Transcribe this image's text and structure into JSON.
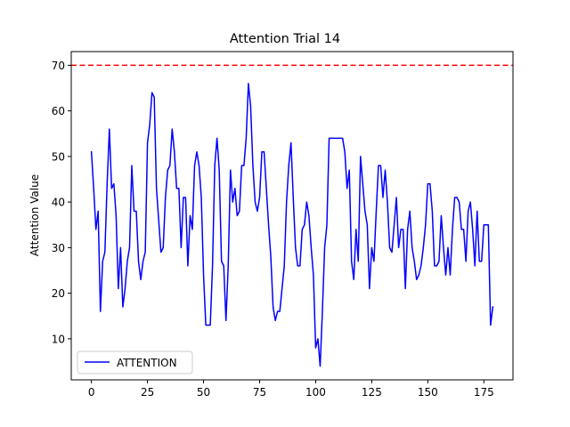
{
  "chart_data": {
    "type": "line",
    "title": "Attention Trial 14",
    "xlabel": "",
    "ylabel": "Attention Value",
    "xlim": [
      -9,
      188
    ],
    "ylim": [
      1,
      73
    ],
    "xticks": [
      0,
      25,
      50,
      75,
      100,
      125,
      150,
      175
    ],
    "yticks": [
      10,
      20,
      30,
      40,
      50,
      60,
      70
    ],
    "grid": false,
    "legend_position": "lower-left",
    "threshold": {
      "value": 70,
      "color": "#ff0000",
      "style": "dashed"
    },
    "series": [
      {
        "name": "ATTENTION",
        "color": "#0000ff",
        "x": [
          0,
          1,
          2,
          3,
          4,
          5,
          6,
          7,
          8,
          9,
          10,
          11,
          12,
          13,
          14,
          15,
          16,
          17,
          18,
          19,
          20,
          21,
          22,
          23,
          24,
          25,
          26,
          27,
          28,
          29,
          30,
          31,
          32,
          33,
          34,
          35,
          36,
          37,
          38,
          39,
          40,
          41,
          42,
          43,
          44,
          45,
          46,
          47,
          48,
          49,
          50,
          51,
          52,
          53,
          54,
          55,
          56,
          57,
          58,
          59,
          60,
          61,
          62,
          63,
          64,
          65,
          66,
          67,
          68,
          69,
          70,
          71,
          72,
          73,
          74,
          75,
          76,
          77,
          78,
          79,
          80,
          81,
          82,
          83,
          84,
          85,
          86,
          87,
          88,
          89,
          90,
          91,
          92,
          93,
          94,
          95,
          96,
          97,
          98,
          99,
          100,
          101,
          102,
          103,
          104,
          105,
          106,
          107,
          108,
          109,
          110,
          111,
          112,
          113,
          114,
          115,
          116,
          117,
          118,
          119,
          120,
          121,
          122,
          123,
          124,
          125,
          126,
          127,
          128,
          129,
          130,
          131,
          132,
          133,
          134,
          135,
          136,
          137,
          138,
          139,
          140,
          141,
          142,
          143,
          144,
          145,
          146,
          147,
          148,
          149,
          150,
          151,
          152,
          153,
          154,
          155,
          156,
          157,
          158,
          159,
          160,
          161,
          162,
          163,
          164,
          165,
          166,
          167,
          168,
          169,
          170,
          171,
          172,
          173,
          174,
          175,
          176,
          177,
          178,
          179
        ],
        "values": [
          51,
          43,
          34,
          38,
          16,
          27,
          29,
          44,
          56,
          43,
          44,
          37,
          21,
          30,
          17,
          21,
          27,
          30,
          48,
          38,
          38,
          27,
          23,
          27,
          29,
          53,
          57,
          64,
          63,
          43,
          36,
          29,
          30,
          41,
          47,
          48,
          56,
          51,
          43,
          43,
          30,
          41,
          41,
          26,
          37,
          34,
          48,
          51,
          48,
          41,
          24,
          13,
          13,
          13,
          26,
          48,
          54,
          47,
          27,
          26,
          14,
          26,
          47,
          40,
          43,
          37,
          38,
          48,
          48,
          54,
          66,
          61,
          48,
          40,
          38,
          41,
          51,
          51,
          43,
          35,
          28,
          17,
          14,
          16,
          16,
          21,
          26,
          40,
          48,
          53,
          41,
          30,
          26,
          26,
          34,
          35,
          40,
          37,
          30,
          24,
          8,
          10,
          4,
          16,
          30,
          35,
          54,
          54,
          54,
          54,
          54,
          54,
          54,
          51,
          43,
          47,
          27,
          23,
          34,
          27,
          50,
          44,
          38,
          35,
          21,
          30,
          27,
          38,
          48,
          48,
          41,
          47,
          40,
          30,
          29,
          35,
          41,
          30,
          34,
          34,
          21,
          34,
          38,
          30,
          27,
          23,
          24,
          26,
          30,
          35,
          44,
          44,
          38,
          26,
          26,
          27,
          37,
          30,
          24,
          30,
          24,
          34,
          41,
          41,
          40,
          34,
          34,
          27,
          38,
          40,
          34,
          26,
          38,
          27,
          27,
          35,
          35,
          35,
          13,
          17
        ]
      }
    ]
  }
}
